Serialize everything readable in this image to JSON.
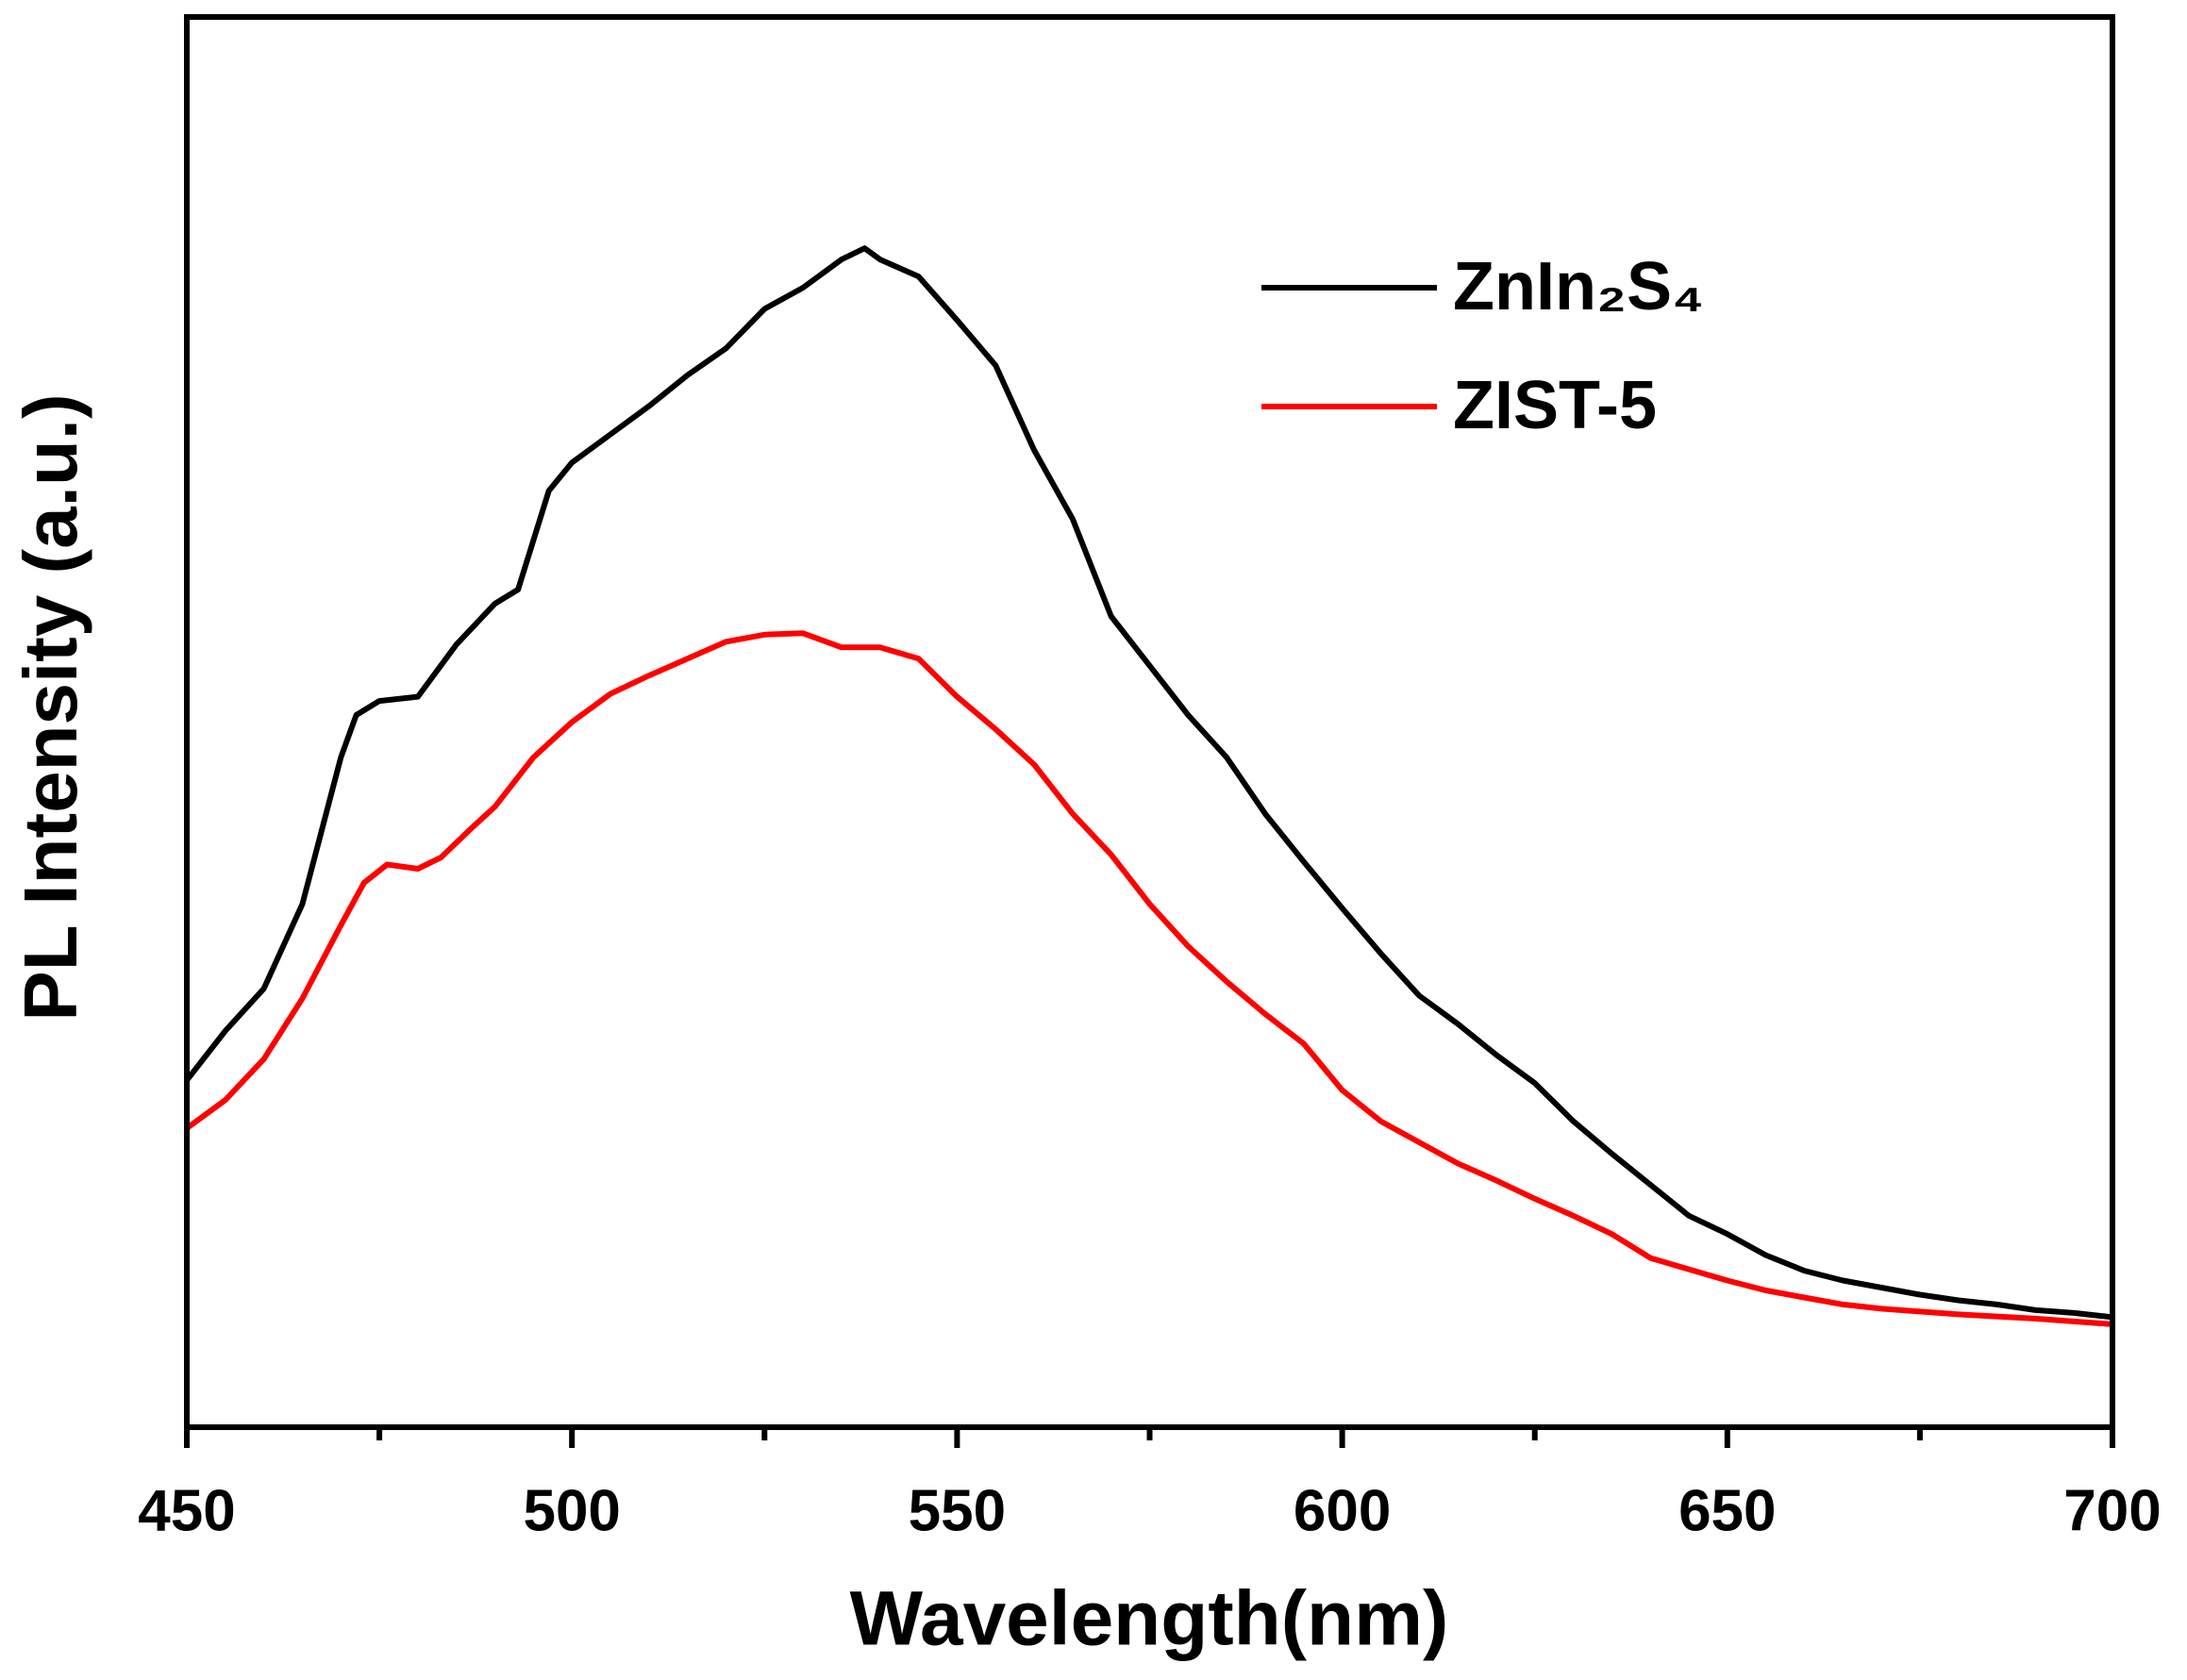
{
  "chart_data": {
    "type": "line",
    "xlabel": "Wavelength(nm)",
    "ylabel": "PL Intensity (a.u.)",
    "xlim": [
      450,
      700
    ],
    "xticks": [
      450,
      500,
      550,
      600,
      650,
      700
    ],
    "xminorticks": [
      475,
      525,
      575,
      625,
      675
    ],
    "ylim": [
      0,
      100
    ],
    "legend": "upper right",
    "series": [
      {
        "name": "ZnIn₂S₄",
        "color": "#000000",
        "x": [
          450,
          455,
          460,
          465,
          470,
          472,
          475,
          480,
          485,
          490,
          493,
          497,
          500,
          505,
          510,
          515,
          520,
          525,
          530,
          535,
          538,
          540,
          545,
          550,
          555,
          560,
          565,
          570,
          575,
          580,
          585,
          590,
          595,
          600,
          605,
          610,
          615,
          620,
          625,
          630,
          635,
          640,
          645,
          650,
          655,
          660,
          665,
          670,
          675,
          680,
          685,
          690,
          695,
          700
        ],
        "values": [
          24.6,
          28.1,
          31.1,
          37.1,
          47.5,
          50.5,
          51.5,
          51.8,
          55.5,
          58.4,
          59.4,
          66.4,
          68.4,
          70.4,
          72.4,
          74.6,
          76.5,
          79.3,
          80.8,
          82.8,
          83.6,
          82.8,
          81.6,
          78.5,
          75.3,
          69.3,
          64.4,
          57.5,
          54.0,
          50.5,
          47.5,
          43.5,
          40.1,
          36.8,
          33.6,
          30.6,
          28.6,
          26.4,
          24.4,
          21.7,
          19.4,
          17.2,
          15.0,
          13.7,
          12.2,
          11.1,
          10.4,
          9.9,
          9.4,
          9.0,
          8.7,
          8.3,
          8.1,
          7.8
        ]
      },
      {
        "name": "ZIST-5",
        "color": "#ff0000",
        "x": [
          450,
          455,
          460,
          465,
          470,
          473,
          476,
          480,
          483,
          487,
          490,
          495,
          500,
          505,
          510,
          515,
          520,
          525,
          530,
          535,
          540,
          545,
          550,
          555,
          560,
          565,
          570,
          575,
          580,
          585,
          590,
          595,
          600,
          605,
          610,
          615,
          620,
          625,
          630,
          635,
          640,
          645,
          650,
          655,
          660,
          665,
          670,
          675,
          680,
          690,
          700
        ],
        "values": [
          21.2,
          23.2,
          26.1,
          30.4,
          35.6,
          38.6,
          39.9,
          39.6,
          40.4,
          42.5,
          44.0,
          47.5,
          50.0,
          52.0,
          53.3,
          54.5,
          55.7,
          56.2,
          56.3,
          55.3,
          55.3,
          54.5,
          51.8,
          49.5,
          47.0,
          43.5,
          40.6,
          37.1,
          34.1,
          31.6,
          29.3,
          27.2,
          23.9,
          21.7,
          20.2,
          18.7,
          17.5,
          16.2,
          15.0,
          13.7,
          12.0,
          11.2,
          10.4,
          9.7,
          9.2,
          8.7,
          8.4,
          8.2,
          8.0,
          7.7,
          7.3
        ]
      }
    ]
  }
}
